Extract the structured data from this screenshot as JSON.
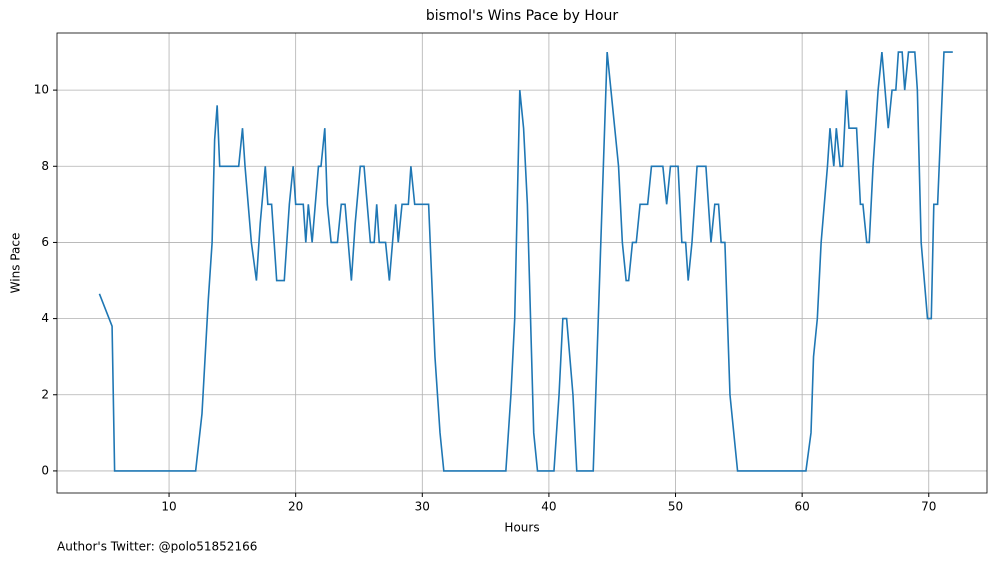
{
  "chart_data": {
    "type": "line",
    "title": "bismol's Wins Pace by Hour",
    "xlabel": "Hours",
    "ylabel": "Wins Pace",
    "annotation": "Author's Twitter: @polo51852166",
    "xlim": [
      1.15,
      74.6
    ],
    "ylim": [
      -0.58,
      11.5
    ],
    "xticks": [
      10,
      20,
      30,
      40,
      50,
      60,
      70
    ],
    "yticks": [
      0,
      2,
      4,
      6,
      8,
      10
    ],
    "grid": true,
    "series": [
      {
        "name": "Wins Pace",
        "color": "#1f77b4",
        "x": [
          4.5,
          5.5,
          5.7,
          12.1,
          12.6,
          13.1,
          13.4,
          13.6,
          13.8,
          14.0,
          15.5,
          15.8,
          16.0,
          16.5,
          16.9,
          17.2,
          17.6,
          17.8,
          18.1,
          18.5,
          19.1,
          19.5,
          19.8,
          20.0,
          20.6,
          20.8,
          21.0,
          21.3,
          21.8,
          22.0,
          22.3,
          22.5,
          22.8,
          23.3,
          23.6,
          23.9,
          24.4,
          24.7,
          25.1,
          25.4,
          25.9,
          26.2,
          26.4,
          26.6,
          27.1,
          27.4,
          27.9,
          28.1,
          28.4,
          28.9,
          29.1,
          29.4,
          30.5,
          31.0,
          31.4,
          31.7,
          36.6,
          37.0,
          37.3,
          37.7,
          38.0,
          38.3,
          38.8,
          39.1,
          40.4,
          40.8,
          41.1,
          41.4,
          41.9,
          42.2,
          43.5,
          43.8,
          44.1,
          44.6,
          44.9,
          45.5,
          45.8,
          46.1,
          46.3,
          46.6,
          46.9,
          47.2,
          47.8,
          48.1,
          49.0,
          49.3,
          49.6,
          50.2,
          50.5,
          50.8,
          51.0,
          51.3,
          51.7,
          52.4,
          52.8,
          53.1,
          53.4,
          53.6,
          53.9,
          54.3,
          54.9,
          60.3,
          60.7,
          60.9,
          61.2,
          61.5,
          62.0,
          62.2,
          62.5,
          62.7,
          63.0,
          63.2,
          63.5,
          63.7,
          64.3,
          64.6,
          64.8,
          65.1,
          65.3,
          65.6,
          66.0,
          66.3,
          66.8,
          67.1,
          67.4,
          67.6,
          67.9,
          68.1,
          68.4,
          68.9,
          69.1,
          69.4,
          69.9,
          70.2,
          70.4,
          70.7,
          71.2,
          71.9
        ],
        "values": [
          4.65,
          3.8,
          0,
          0,
          1.5,
          4.5,
          6,
          8.7,
          9.6,
          8,
          8,
          9,
          8,
          6,
          5,
          6.5,
          8,
          7,
          7,
          5,
          5,
          7,
          8,
          7,
          7,
          6,
          7,
          6,
          8,
          8,
          9,
          7,
          6,
          6,
          7,
          7,
          5,
          6.5,
          8,
          8,
          6,
          6,
          7,
          6,
          6,
          5,
          7,
          6,
          7,
          7,
          8,
          7,
          7,
          3,
          1,
          0,
          0,
          2,
          4,
          10,
          9,
          7,
          1,
          0,
          0,
          2,
          4,
          4,
          2,
          0,
          0,
          3,
          6,
          11,
          10,
          8,
          6,
          5,
          5,
          6,
          6,
          7,
          7,
          8,
          8,
          7,
          8,
          8,
          6,
          6,
          5,
          6,
          8,
          8,
          6,
          7,
          7,
          6,
          6,
          2,
          0,
          0,
          1,
          3,
          4,
          6,
          8,
          9,
          8,
          9,
          8,
          8,
          10,
          9,
          9,
          7,
          7,
          6,
          6,
          8,
          10,
          11,
          9,
          10,
          10,
          11,
          11,
          10,
          11,
          11,
          10,
          6,
          4,
          4,
          7,
          7,
          11,
          11
        ]
      }
    ]
  }
}
